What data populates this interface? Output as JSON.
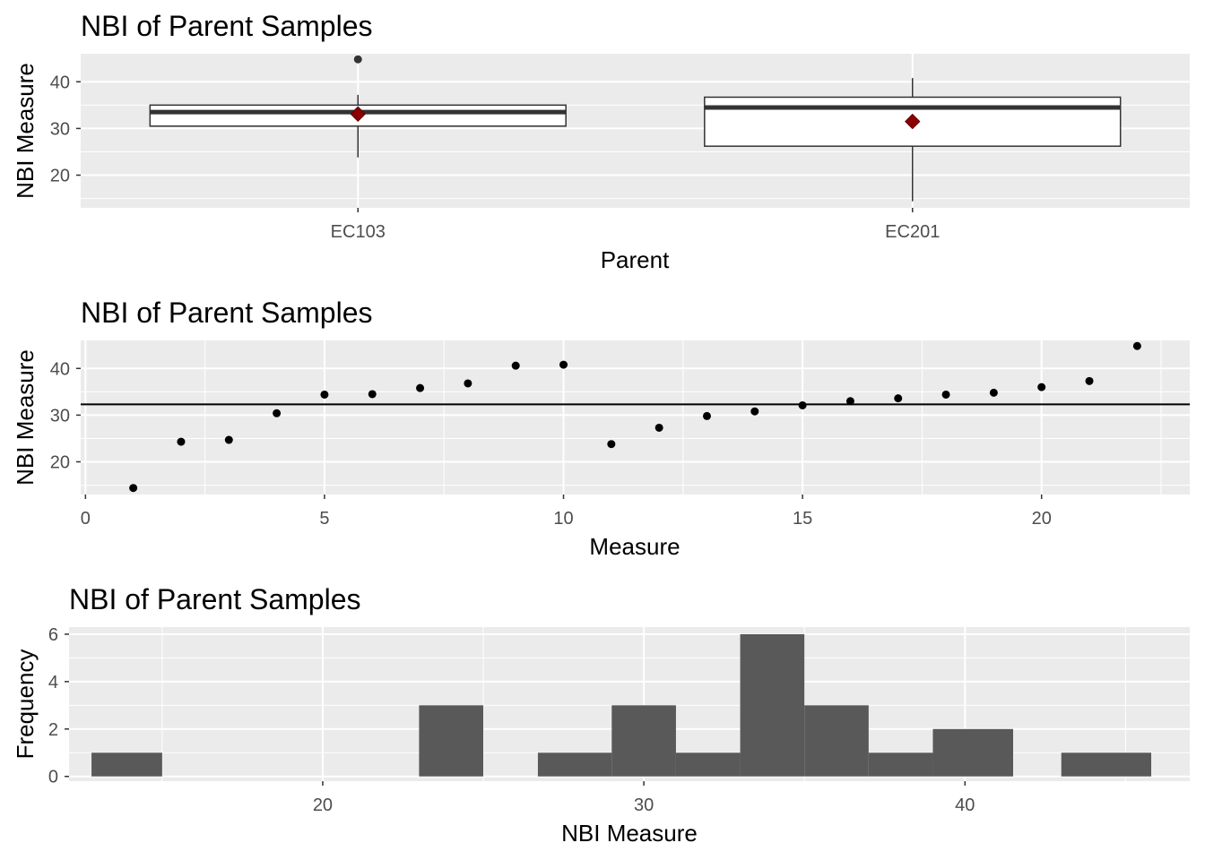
{
  "chart_data": [
    {
      "type": "box",
      "title": "NBI of Parent Samples",
      "xlabel": "Parent",
      "ylabel": "NBI Measure",
      "categories": [
        "EC103",
        "EC201"
      ],
      "boxes": [
        {
          "category": "EC103",
          "whisker_low": 23.8,
          "q1": 30.5,
          "median": 33.5,
          "q3": 35,
          "whisker_high": 37.2,
          "mean": 33.1,
          "outliers": [
            44.8
          ]
        },
        {
          "category": "EC201",
          "whisker_low": 14.4,
          "q1": 26.2,
          "median": 34.5,
          "q3": 36.7,
          "whisker_high": 40.8,
          "mean": 31.5,
          "outliers": []
        }
      ],
      "ylim": [
        13,
        46
      ],
      "y_ticks": [
        20,
        30,
        40
      ],
      "mean_marker_color": "#8b0000",
      "grid": true
    },
    {
      "type": "scatter",
      "title": "NBI of Parent Samples",
      "xlabel": "Measure",
      "ylabel": "NBI Measure",
      "x": [
        1,
        2,
        3,
        4,
        5,
        6,
        7,
        8,
        9,
        10,
        11,
        12,
        13,
        14,
        15,
        16,
        17,
        18,
        19,
        20,
        21,
        22
      ],
      "y": [
        14.4,
        24.3,
        24.7,
        30.4,
        34.4,
        34.5,
        35.8,
        36.8,
        40.6,
        40.8,
        23.8,
        27.3,
        29.8,
        30.8,
        32.1,
        33.0,
        33.6,
        34.4,
        34.8,
        36.0,
        37.3,
        44.8
      ],
      "hline": 32.3,
      "xlim": [
        -0.1,
        23.1
      ],
      "ylim": [
        13,
        46
      ],
      "x_ticks": [
        0,
        5,
        10,
        15,
        20
      ],
      "y_ticks": [
        20,
        30,
        40
      ],
      "grid": true
    },
    {
      "type": "histogram",
      "title": "NBI of Parent Samples",
      "xlabel": "NBI Measure",
      "ylabel": "Frequency",
      "bins": [
        {
          "x0": 12.8,
          "x1": 15.0,
          "count": 1
        },
        {
          "x0": 23.0,
          "x1": 25.0,
          "count": 3
        },
        {
          "x0": 26.7,
          "x1": 29.0,
          "count": 1
        },
        {
          "x0": 29.0,
          "x1": 31.0,
          "count": 3
        },
        {
          "x0": 31.0,
          "x1": 33.0,
          "count": 1
        },
        {
          "x0": 33.0,
          "x1": 35.0,
          "count": 6
        },
        {
          "x0": 35.0,
          "x1": 37.0,
          "count": 3
        },
        {
          "x0": 37.0,
          "x1": 39.0,
          "count": 1
        },
        {
          "x0": 39.0,
          "x1": 41.5,
          "count": 2
        },
        {
          "x0": 43.0,
          "x1": 45.8,
          "count": 1
        }
      ],
      "xlim": [
        12.1,
        47.0
      ],
      "ylim": [
        -0.2,
        6.3
      ],
      "x_ticks": [
        20,
        30,
        40
      ],
      "y_ticks": [
        0,
        2,
        4,
        6
      ],
      "bar_color": "#595959",
      "grid": true
    }
  ]
}
